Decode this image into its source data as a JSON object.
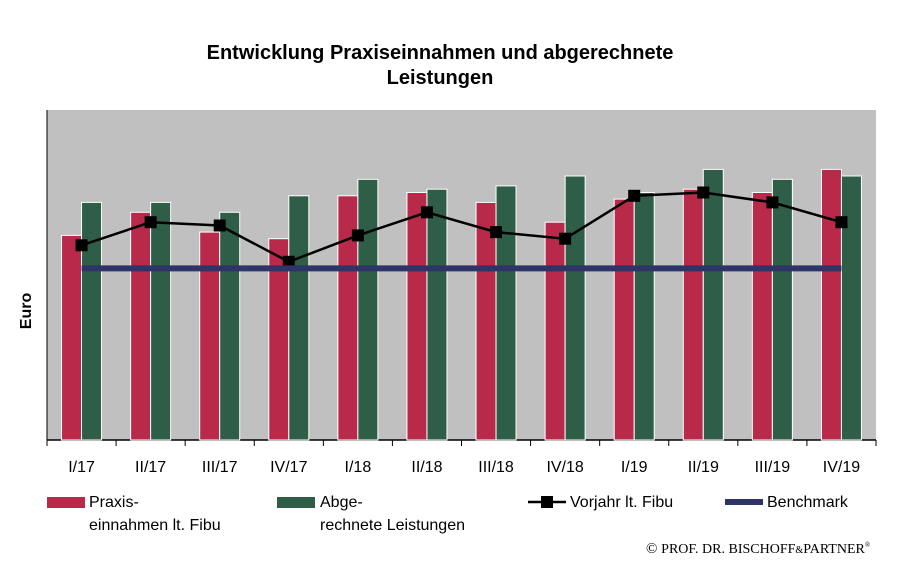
{
  "chart_data": {
    "type": "bar",
    "title": [
      "Entwicklung Praxiseinnahmen und abgerechnete",
      "Leistungen"
    ],
    "ylabel": "Euro",
    "xlabel": "",
    "categories": [
      "I/17",
      "II/17",
      "III/17",
      "IV/17",
      "I/18",
      "II/18",
      "III/18",
      "IV/18",
      "I/19",
      "II/19",
      "III/19",
      "IV/19"
    ],
    "ylim": [
      0,
      100
    ],
    "grid": false,
    "legend_position": "bottom",
    "series": [
      {
        "name": [
          "Praxis-",
          "einnahmen lt. Fibu"
        ],
        "kind": "bar",
        "color": "#b8294a",
        "values": [
          62,
          69,
          63,
          61,
          74,
          75,
          72,
          66,
          73,
          76,
          75,
          82
        ]
      },
      {
        "name": [
          "Abge-",
          "rechnete Leistungen"
        ],
        "kind": "bar",
        "color": "#2e5e47",
        "values": [
          72,
          72,
          69,
          74,
          79,
          76,
          77,
          80,
          75,
          82,
          79,
          80
        ]
      },
      {
        "name": [
          "Vorjahr lt. Fibu"
        ],
        "kind": "line",
        "marker": "square",
        "color": "#000000",
        "values": [
          59,
          66,
          65,
          54,
          62,
          69,
          63,
          61,
          74,
          75,
          72,
          66
        ]
      },
      {
        "name": [
          "Benchmark"
        ],
        "kind": "line",
        "color": "#2e3566",
        "values": [
          52,
          52,
          52,
          52,
          52,
          52,
          52,
          52,
          52,
          52,
          52,
          52
        ]
      }
    ]
  },
  "copyright": {
    "symbol": "©",
    "text": "PROF. DR. BISCHOFF",
    "amp": "&",
    "text2": "PARTNER",
    "reg": "®"
  }
}
